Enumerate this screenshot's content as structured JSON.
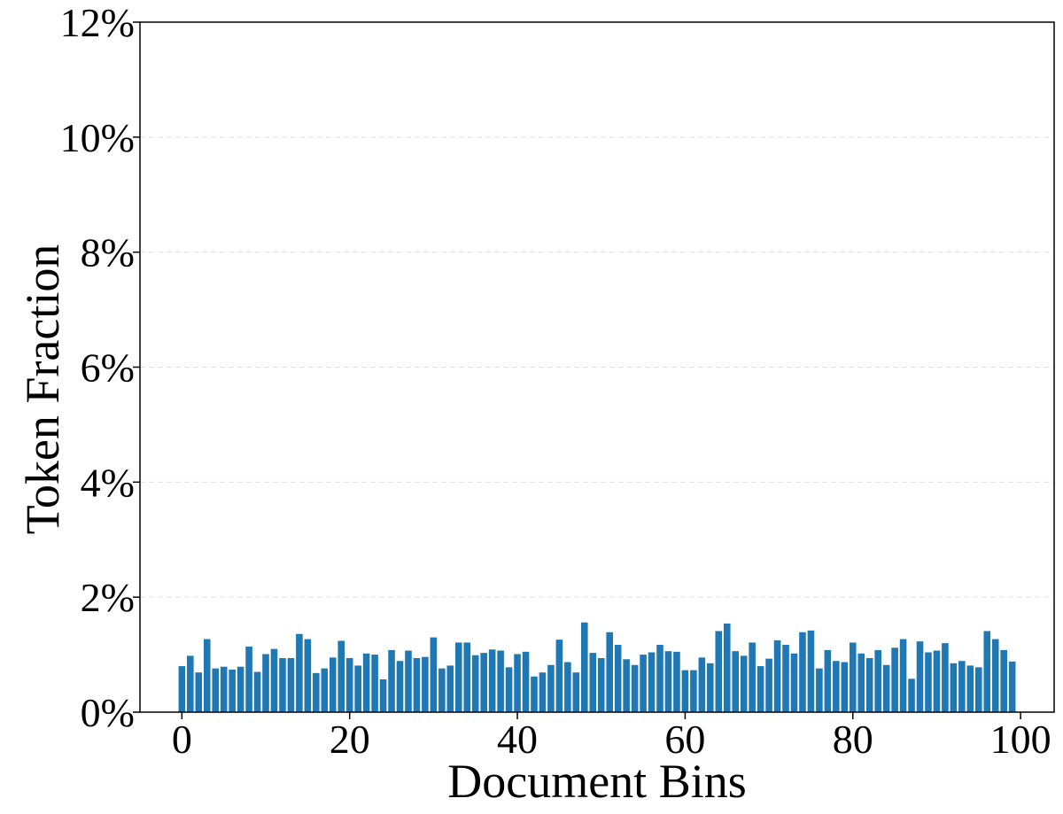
{
  "chart_data": {
    "type": "bar",
    "title": "",
    "xlabel": "Document Bins",
    "ylabel": "Token Fraction",
    "xlim": [
      -5,
      104
    ],
    "ylim": [
      0,
      12
    ],
    "x_ticks": [
      0,
      20,
      40,
      60,
      80,
      100
    ],
    "x_tick_labels": [
      "0",
      "20",
      "40",
      "60",
      "80",
      "100"
    ],
    "y_ticks": [
      0,
      2,
      4,
      6,
      8,
      10,
      12
    ],
    "y_tick_labels": [
      "0%",
      "2%",
      "4%",
      "6%",
      "8%",
      "10%",
      "12%"
    ],
    "y_unit": "percent",
    "grid": "horizontal, dashed, light",
    "bar_color": "#1f77b4",
    "categories": [
      0,
      1,
      2,
      3,
      4,
      5,
      6,
      7,
      8,
      9,
      10,
      11,
      12,
      13,
      14,
      15,
      16,
      17,
      18,
      19,
      20,
      21,
      22,
      23,
      24,
      25,
      26,
      27,
      28,
      29,
      30,
      31,
      32,
      33,
      34,
      35,
      36,
      37,
      38,
      39,
      40,
      41,
      42,
      43,
      44,
      45,
      46,
      47,
      48,
      49,
      50,
      51,
      52,
      53,
      54,
      55,
      56,
      57,
      58,
      59,
      60,
      61,
      62,
      63,
      64,
      65,
      66,
      67,
      68,
      69,
      70,
      71,
      72,
      73,
      74,
      75,
      76,
      77,
      78,
      79,
      80,
      81,
      82,
      83,
      84,
      85,
      86,
      87,
      88,
      89,
      90,
      91,
      92,
      93,
      94,
      95,
      96,
      97,
      98,
      99
    ],
    "values": [
      0.8,
      0.98,
      0.69,
      1.27,
      0.76,
      0.79,
      0.74,
      0.79,
      1.14,
      0.7,
      1.01,
      1.1,
      0.94,
      0.94,
      1.36,
      1.27,
      0.68,
      0.76,
      0.95,
      1.24,
      0.94,
      0.81,
      1.02,
      1.0,
      0.57,
      1.08,
      0.89,
      1.07,
      0.94,
      0.96,
      1.3,
      0.76,
      0.81,
      1.21,
      1.21,
      0.99,
      1.03,
      1.09,
      1.07,
      0.78,
      1.01,
      1.05,
      0.62,
      0.69,
      0.82,
      1.26,
      0.87,
      0.69,
      1.56,
      1.03,
      0.94,
      1.39,
      1.17,
      0.92,
      0.82,
      1.0,
      1.04,
      1.17,
      1.06,
      1.05,
      0.73,
      0.73,
      0.95,
      0.85,
      1.41,
      1.54,
      1.06,
      0.98,
      1.21,
      0.8,
      0.93,
      1.25,
      1.17,
      1.02,
      1.39,
      1.42,
      0.76,
      1.08,
      0.89,
      0.87,
      1.21,
      1.02,
      0.94,
      1.08,
      0.82,
      1.12,
      1.27,
      0.58,
      1.23,
      1.04,
      1.07,
      1.2,
      0.85,
      0.89,
      0.81,
      0.78,
      1.41,
      1.27,
      1.08,
      0.88
    ]
  }
}
